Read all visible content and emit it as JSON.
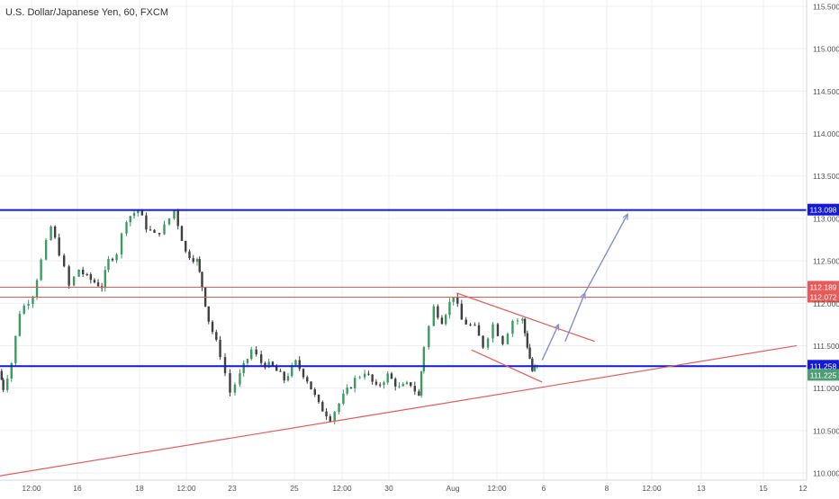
{
  "header": {
    "title": "U.S. Dollar/Japanese Yen, 60, FXCM"
  },
  "colors": {
    "up": "#3c9b5f",
    "down": "#3f3f3f",
    "support_resistance": "#1418d8",
    "resistance_red": "#e85a5a",
    "projection": "#7f8fce",
    "grid": "#eceff2",
    "axis_text": "#555555",
    "price_tag_current": "#4f9d74"
  },
  "chart_data": {
    "type": "candlestick",
    "title": "U.S. Dollar/Japanese Yen, 60, FXCM",
    "ylim": [
      109.9,
      115.6
    ],
    "grid": true,
    "y_ticks": [
      "115.500",
      "115.000",
      "114.500",
      "114.000",
      "113.500",
      "113.000",
      "112.500",
      "112.000",
      "111.500",
      "111.000",
      "110.500",
      "110.000"
    ],
    "x_tick_labels": [
      "12:00",
      "16",
      "18",
      "12:00",
      "23",
      "25",
      "12:00",
      "30",
      "Aug",
      "12:00",
      "6",
      "8",
      "12:00",
      "13",
      "15",
      "12"
    ],
    "horizontal_levels": [
      {
        "name": "upper-resistance",
        "value": 113.098,
        "label": "113.098",
        "color": "#1418d8"
      },
      {
        "name": "red-band-top",
        "value": 112.189,
        "label": "112.189",
        "color": "#e85a5a"
      },
      {
        "name": "red-band-bottom",
        "value": 112.072,
        "label": "112.072",
        "color": "#e85a5a"
      },
      {
        "name": "lower-support",
        "value": 111.258,
        "label": "111.258",
        "color": "#1418d8"
      }
    ],
    "current_price": {
      "value": 111.225,
      "label": "111.225"
    },
    "price_path": [
      [
        0,
        111.2
      ],
      [
        0.2,
        111.0
      ],
      [
        0.7,
        111.3
      ],
      [
        1.2,
        111.9
      ],
      [
        2.0,
        112.1
      ],
      [
        2.5,
        112.5
      ],
      [
        3.1,
        112.9
      ],
      [
        3.6,
        112.6
      ],
      [
        4.2,
        112.2
      ],
      [
        4.8,
        112.4
      ],
      [
        5.3,
        112.3
      ],
      [
        6.2,
        112.2
      ],
      [
        6.6,
        112.5
      ],
      [
        7.1,
        112.6
      ],
      [
        7.7,
        113.0
      ],
      [
        8.4,
        113.1
      ],
      [
        8.9,
        112.9
      ],
      [
        9.4,
        112.8
      ],
      [
        10.0,
        112.9
      ],
      [
        10.6,
        113.1
      ],
      [
        11.3,
        112.6
      ],
      [
        12.0,
        112.5
      ],
      [
        12.3,
        112.2
      ],
      [
        12.7,
        111.8
      ],
      [
        13.4,
        111.4
      ],
      [
        14.0,
        110.95
      ],
      [
        14.6,
        111.15
      ],
      [
        15.3,
        111.45
      ],
      [
        15.9,
        111.3
      ],
      [
        16.6,
        111.25
      ],
      [
        17.3,
        111.1
      ],
      [
        18.0,
        111.3
      ],
      [
        18.7,
        111.1
      ],
      [
        19.4,
        110.8
      ],
      [
        20.1,
        110.65
      ],
      [
        20.9,
        110.9
      ],
      [
        21.6,
        111.1
      ],
      [
        22.2,
        111.2
      ],
      [
        22.9,
        111.0
      ],
      [
        23.6,
        111.15
      ],
      [
        24.3,
        111.0
      ],
      [
        25.0,
        111.05
      ],
      [
        25.5,
        110.9
      ],
      [
        25.8,
        111.5
      ],
      [
        26.4,
        111.95
      ],
      [
        26.9,
        111.8
      ],
      [
        27.6,
        112.1
      ],
      [
        28.1,
        111.8
      ],
      [
        28.9,
        111.7
      ],
      [
        29.4,
        111.5
      ],
      [
        30.0,
        111.75
      ],
      [
        30.6,
        111.55
      ],
      [
        31.2,
        111.8
      ],
      [
        31.8,
        111.8
      ],
      [
        32.1,
        111.5
      ],
      [
        32.4,
        111.2
      ],
      [
        32.7,
        111.25
      ]
    ],
    "trendlines": [
      {
        "name": "rising-support",
        "from": [
          -0.5,
          109.95
        ],
        "to": [
          48.5,
          111.5
        ],
        "color": "#e85a5a"
      },
      {
        "name": "wedge-top",
        "from": [
          27.8,
          112.12
        ],
        "to": [
          36.2,
          111.55
        ],
        "color": "#e85a5a"
      },
      {
        "name": "wedge-bottom",
        "from": [
          28.7,
          111.45
        ],
        "to": [
          33.0,
          111.07
        ],
        "color": "#e85a5a"
      }
    ],
    "projection_arrows": [
      {
        "from": [
          33.0,
          111.33
        ],
        "to": [
          34.0,
          111.75
        ]
      },
      {
        "from": [
          34.4,
          111.55
        ],
        "to": [
          35.6,
          112.12
        ]
      },
      {
        "from": [
          35.6,
          112.12
        ],
        "to": [
          38.2,
          113.05
        ]
      }
    ]
  }
}
